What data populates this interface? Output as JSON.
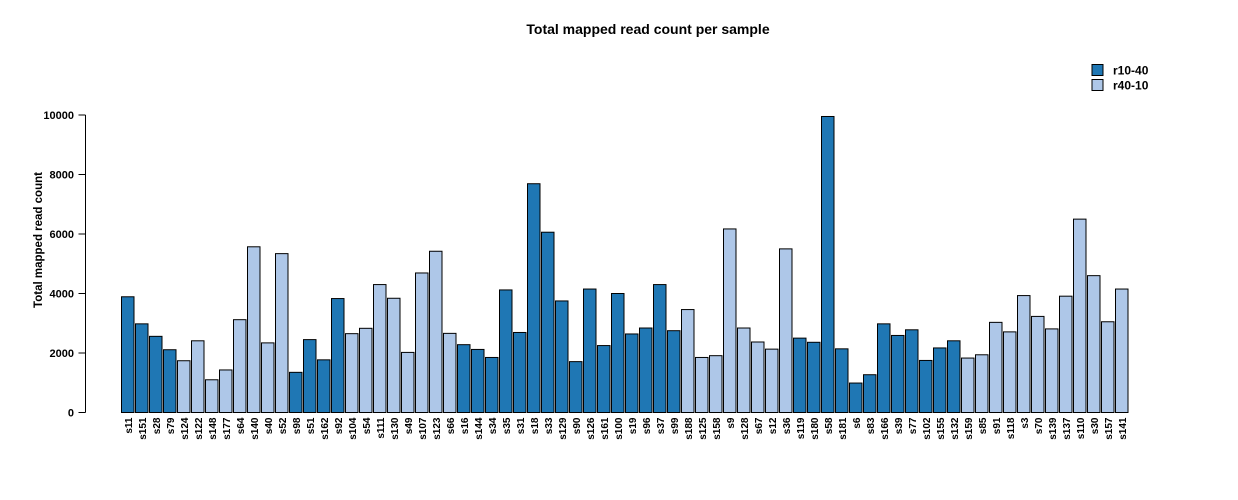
{
  "title": "Total mapped read count per sample",
  "y_axis": {
    "label": "Total mapped read count",
    "ticks": [
      0,
      2000,
      4000,
      6000,
      8000,
      10000
    ]
  },
  "legend": {
    "items": [
      {
        "label": "r10-40",
        "color": "#1f77b4"
      },
      {
        "label": "r40-10",
        "color": "#aec7e8"
      }
    ]
  },
  "chart_data": {
    "type": "bar",
    "title": "Total mapped read count per sample",
    "xlabel": "",
    "ylabel": "Total mapped read count",
    "ylim": [
      0,
      10000
    ],
    "grid": false,
    "legend_position": "top-right",
    "series_colors": {
      "r10-40": "#1f77b4",
      "r40-10": "#aec7e8"
    },
    "categories": [
      "s11",
      "s151",
      "s28",
      "s79",
      "s124",
      "s122",
      "s148",
      "s177",
      "s64",
      "s140",
      "s40",
      "s52",
      "s98",
      "s51",
      "s162",
      "s92",
      "s104",
      "s54",
      "s111",
      "s130",
      "s49",
      "s107",
      "s123",
      "s66",
      "s16",
      "s144",
      "s34",
      "s35",
      "s31",
      "s18",
      "s33",
      "s129",
      "s90",
      "s126",
      "s161",
      "s100",
      "s19",
      "s96",
      "s37",
      "s99",
      "s188",
      "s125",
      "s158",
      "s9",
      "s128",
      "s67",
      "s12",
      "s36",
      "s119",
      "s180",
      "s58",
      "s181",
      "s6",
      "s83",
      "s166",
      "s39",
      "s77",
      "s102",
      "s155",
      "s132",
      "s159",
      "s85",
      "s91",
      "s118",
      "s3",
      "s70",
      "s139",
      "s137",
      "s110",
      "s30",
      "s157",
      "s141"
    ],
    "groups": [
      "r10-40",
      "r10-40",
      "r10-40",
      "r10-40",
      "r40-10",
      "r40-10",
      "r40-10",
      "r40-10",
      "r40-10",
      "r40-10",
      "r40-10",
      "r40-10",
      "r10-40",
      "r10-40",
      "r10-40",
      "r10-40",
      "r40-10",
      "r40-10",
      "r40-10",
      "r40-10",
      "r40-10",
      "r40-10",
      "r40-10",
      "r40-10",
      "r10-40",
      "r10-40",
      "r10-40",
      "r10-40",
      "r10-40",
      "r10-40",
      "r10-40",
      "r10-40",
      "r10-40",
      "r10-40",
      "r10-40",
      "r10-40",
      "r10-40",
      "r10-40",
      "r10-40",
      "r10-40",
      "r40-10",
      "r40-10",
      "r40-10",
      "r40-10",
      "r40-10",
      "r40-10",
      "r40-10",
      "r40-10",
      "r10-40",
      "r10-40",
      "r10-40",
      "r10-40",
      "r10-40",
      "r10-40",
      "r10-40",
      "r10-40",
      "r10-40",
      "r10-40",
      "r10-40",
      "r10-40",
      "r40-10",
      "r40-10",
      "r40-10",
      "r40-10",
      "r40-10",
      "r40-10",
      "r40-10",
      "r40-10",
      "r40-10",
      "r40-10",
      "r40-10",
      "r40-10"
    ],
    "values": [
      3890,
      2980,
      2560,
      2110,
      1740,
      2410,
      1100,
      1430,
      3120,
      5570,
      2340,
      5340,
      1350,
      2450,
      1770,
      3830,
      2650,
      2830,
      4300,
      3840,
      2020,
      4690,
      5420,
      2660,
      2280,
      2120,
      1850,
      4120,
      2690,
      7690,
      6060,
      3750,
      1710,
      4150,
      2250,
      4000,
      2640,
      2840,
      4300,
      2750,
      3460,
      1850,
      1910,
      6170,
      2840,
      2370,
      2130,
      5500,
      2500,
      2360,
      9950,
      2140,
      990,
      1270,
      2980,
      2590,
      2780,
      1750,
      2170,
      2410,
      1830,
      1940,
      3030,
      2710,
      3930,
      3230,
      2810,
      3910,
      6500,
      4600,
      3050,
      4150
    ]
  }
}
